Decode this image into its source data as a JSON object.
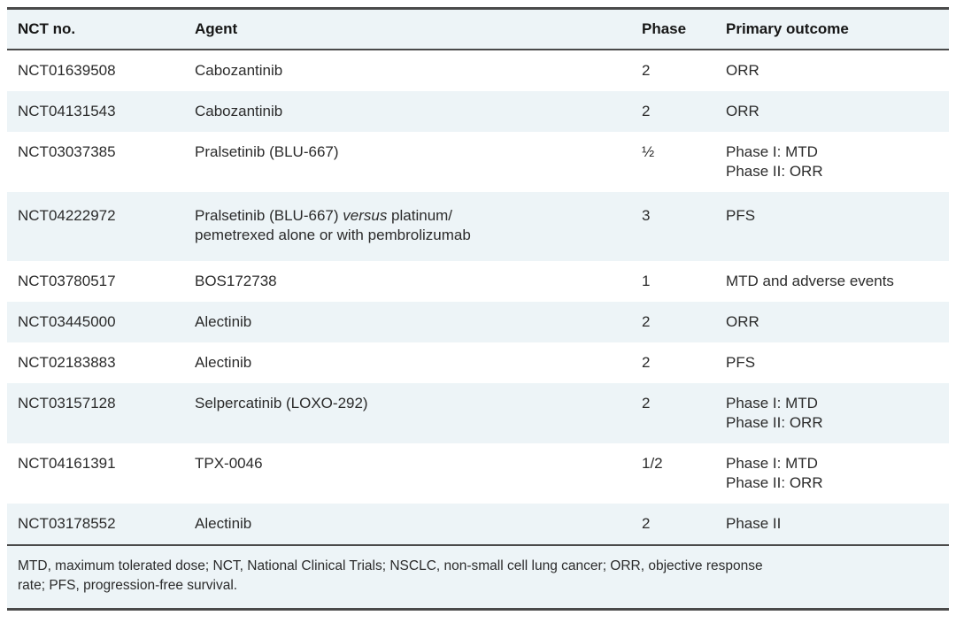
{
  "table": {
    "columns": [
      {
        "label": "NCT no."
      },
      {
        "label": "Agent"
      },
      {
        "label": "Phase"
      },
      {
        "label": "Primary outcome"
      }
    ],
    "rows": [
      {
        "nct": "NCT01639508",
        "agent": "Cabozantinib",
        "phase": "2",
        "outcome": "ORR"
      },
      {
        "nct": "NCT04131543",
        "agent": "Cabozantinib",
        "phase": "2",
        "outcome": "ORR"
      },
      {
        "nct": "NCT03037385",
        "agent": "Pralsetinib (BLU-667)",
        "phase": "½",
        "outcome": "Phase I: MTD\nPhase II: ORR"
      },
      {
        "nct": "NCT04222972",
        "agent_pre": "Pralsetinib (BLU-667) ",
        "agent_italic": "versus",
        "agent_post": " platinum/\npemetrexed alone or with pembrolizumab",
        "phase": "3",
        "outcome": "PFS"
      },
      {
        "nct": "NCT03780517",
        "agent": "BOS172738",
        "phase": "1",
        "outcome": "MTD and adverse events"
      },
      {
        "nct": "NCT03445000",
        "agent": "Alectinib",
        "phase": "2",
        "outcome": "ORR"
      },
      {
        "nct": "NCT02183883",
        "agent": "Alectinib",
        "phase": "2",
        "outcome": "PFS"
      },
      {
        "nct": "NCT03157128",
        "agent": "Selpercatinib (LOXO-292)",
        "phase": "2",
        "outcome": "Phase I: MTD\nPhase II: ORR"
      },
      {
        "nct": "NCT04161391",
        "agent": "TPX-0046",
        "phase": "1/2",
        "outcome": "Phase I: MTD\nPhase II: ORR"
      },
      {
        "nct": "NCT03178552",
        "agent": "Alectinib",
        "phase": "2",
        "outcome": "Phase II"
      }
    ],
    "footnote": "MTD, maximum tolerated dose; NCT, National Clinical Trials; NSCLC, non-small cell lung cancer; ORR, objective response\nrate; PFS, progression-free survival."
  },
  "colors": {
    "row_alt_background": "#edf4f7",
    "rule": "#4a4a4a",
    "text": "#2b2b2b"
  }
}
